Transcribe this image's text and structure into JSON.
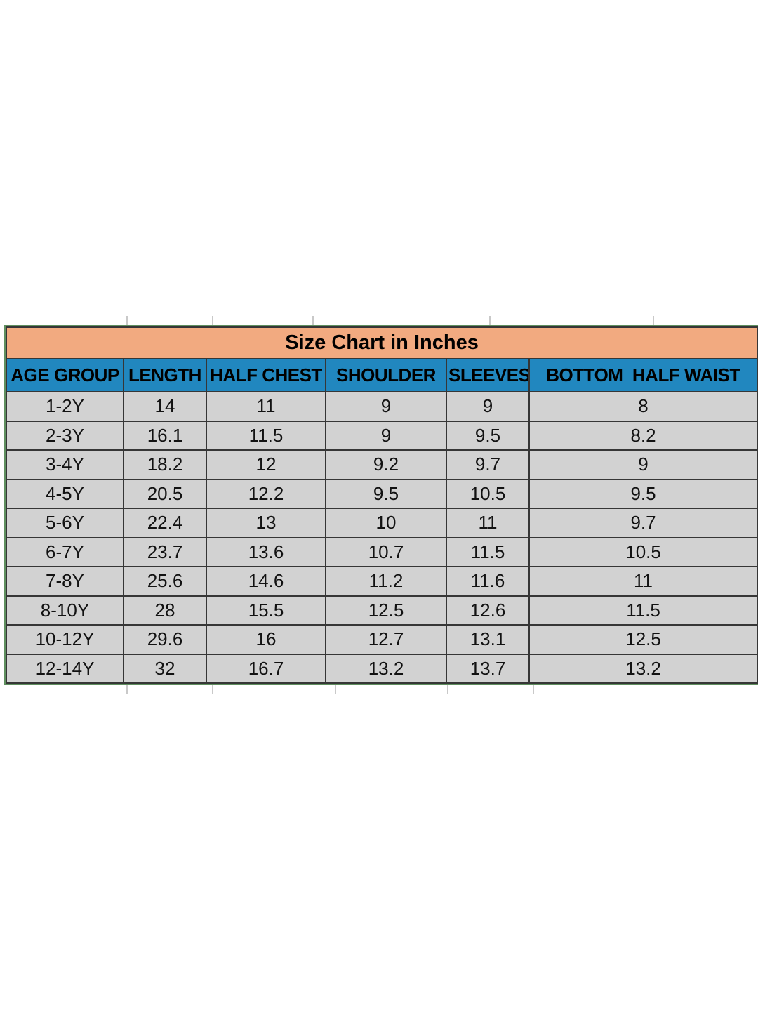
{
  "chart_data": {
    "type": "table",
    "title": "Size Chart in Inches",
    "columns": [
      "AGE GROUP",
      "LENGTH",
      "HALF CHEST",
      "SHOULDER",
      "SLEEVES",
      "BOTTOM  HALF WAIST"
    ],
    "rows": [
      [
        "1-2Y",
        "14",
        "11",
        "9",
        "9",
        "8"
      ],
      [
        "2-3Y",
        "16.1",
        "11.5",
        "9",
        "9.5",
        "8.2"
      ],
      [
        "3-4Y",
        "18.2",
        "12",
        "9.2",
        "9.7",
        "9"
      ],
      [
        "4-5Y",
        "20.5",
        "12.2",
        "9.5",
        "10.5",
        "9.5"
      ],
      [
        "5-6Y",
        "22.4",
        "13",
        "10",
        "11",
        "9.7"
      ],
      [
        "6-7Y",
        "23.7",
        "13.6",
        "10.7",
        "11.5",
        "10.5"
      ],
      [
        "7-8Y",
        "25.6",
        "14.6",
        "11.2",
        "11.6",
        "11"
      ],
      [
        "8-10Y",
        "28",
        "15.5",
        "12.5",
        "12.6",
        "11.5"
      ],
      [
        "10-12Y",
        "29.6",
        "16",
        "12.7",
        "13.1",
        "12.5"
      ],
      [
        "12-14Y",
        "32",
        "16.7",
        "13.2",
        "13.7",
        "13.2"
      ]
    ],
    "layout_hints": {
      "last_column_merged": true,
      "grid": "on",
      "units": "inches"
    }
  },
  "colors": {
    "title_bg": "#f2aa80",
    "header_bg": "#2187bf",
    "row_bg": "#d2d2d2",
    "border": "#363636",
    "green_edge": "#5f8f5f",
    "text": "#121212"
  }
}
